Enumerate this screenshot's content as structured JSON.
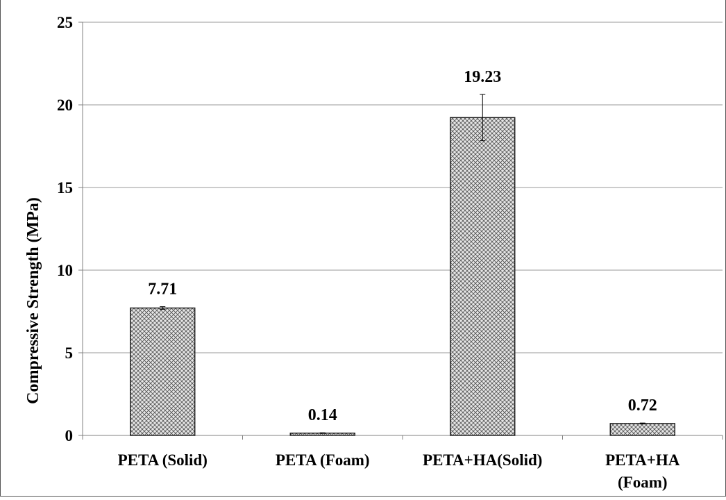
{
  "chart_data": {
    "type": "bar",
    "title": "",
    "xlabel": "",
    "ylabel": "Compressive Strength (MPa)",
    "ylim": [
      0,
      25
    ],
    "yticks": [
      0,
      5,
      10,
      15,
      20,
      25
    ],
    "grid": true,
    "legend": "none",
    "categories": [
      [
        "PETA (Solid)"
      ],
      [
        "PETA (Foam)"
      ],
      [
        "PETA+HA(Solid)"
      ],
      [
        "PETA+HA",
        "(Foam)"
      ]
    ],
    "values": [
      7.71,
      0.14,
      19.23,
      0.72
    ],
    "value_labels": [
      "7.71",
      "0.14",
      "19.23",
      "0.72"
    ],
    "error": [
      0.08,
      0.02,
      1.4,
      0.03
    ],
    "bar_fill": "#bfbfbf",
    "bar_stroke": "#1a1a1a",
    "grid_color": "#9a9a9a",
    "axis_color": "#808080"
  }
}
